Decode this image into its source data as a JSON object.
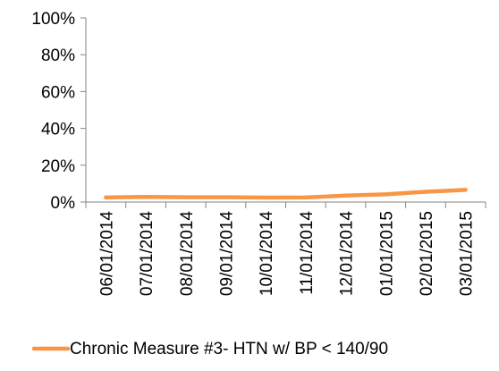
{
  "chart_data": {
    "type": "line",
    "title": "",
    "xlabel": "",
    "ylabel": "",
    "ylim": [
      0,
      100
    ],
    "y_ticks": [
      "0%",
      "20%",
      "40%",
      "60%",
      "80%",
      "100%"
    ],
    "categories": [
      "06/01/2014",
      "07/01/2014",
      "08/01/2014",
      "09/01/2014",
      "10/01/2014",
      "11/01/2014",
      "12/01/2014",
      "01/01/2015",
      "02/01/2015",
      "03/01/2015"
    ],
    "series": [
      {
        "name": "Chronic Measure #3- HTN w/ BP < 140/90",
        "color": "#F79646",
        "values": [
          2.5,
          2.8,
          2.6,
          2.6,
          2.4,
          2.5,
          3.5,
          4.2,
          5.6,
          6.6
        ]
      }
    ],
    "grid": false,
    "legend_position": "bottom"
  }
}
